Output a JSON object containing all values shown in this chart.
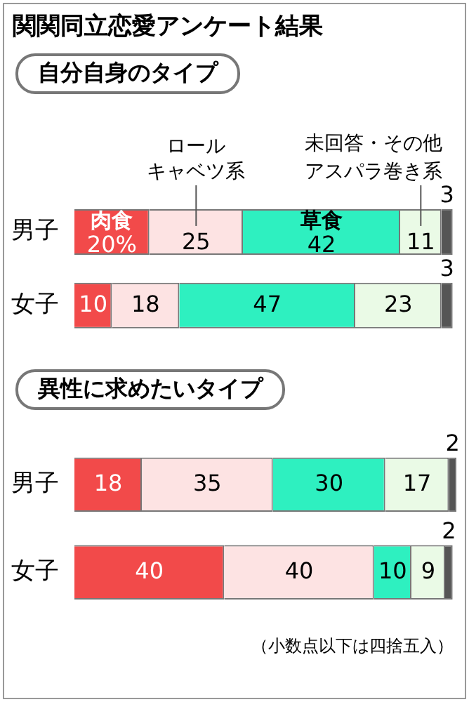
{
  "chart_data": [
    {
      "type": "bar",
      "title": "関関同立恋愛アンケート結果",
      "subtitle": "自分自身のタイプ",
      "orientation": "horizontal",
      "stacked": true,
      "categories": [
        "男子",
        "女子"
      ],
      "xlim": [
        0,
        102
      ],
      "tick_labels": "y",
      "grid": false,
      "legend": false,
      "series": [
        {
          "name": "肉食",
          "color": "#f24a4a",
          "values": [
            20,
            10
          ],
          "value_labels": [
            "20%",
            "10"
          ]
        },
        {
          "name": "ロールキャベツ系",
          "color": "#fde3e3",
          "values": [
            25,
            18
          ],
          "value_labels": [
            "25",
            "18"
          ]
        },
        {
          "name": "草食",
          "color": "#2ef0c0",
          "values": [
            42,
            47
          ],
          "value_labels": [
            "42",
            "47"
          ]
        },
        {
          "name": "アスパラ巻き系",
          "color": "#eafae6",
          "values": [
            11,
            23
          ],
          "value_labels": [
            "11",
            "23"
          ]
        },
        {
          "name": "未回答・その他",
          "color": "#555555",
          "values": [
            3,
            3
          ],
          "value_labels": [
            "3",
            "3"
          ]
        }
      ]
    },
    {
      "type": "bar",
      "subtitle": "異性に求めたいタイプ",
      "orientation": "horizontal",
      "stacked": true,
      "categories": [
        "男子",
        "女子"
      ],
      "xlim": [
        0,
        102
      ],
      "tick_labels": "y",
      "grid": false,
      "legend": false,
      "data_labels": true,
      "annotations": [
        "（小数点以下は四捨五入）"
      ],
      "series": [
        {
          "color": "#f24a4a",
          "values": [
            18,
            40
          ]
        },
        {
          "color": "#fde3e3",
          "values": [
            35,
            40
          ]
        },
        {
          "color": "#2ef0c0",
          "values": [
            30,
            10
          ]
        },
        {
          "color": "#eafae6",
          "values": [
            17,
            9
          ]
        },
        {
          "color": "#555555",
          "values": [
            2,
            2
          ]
        }
      ]
    }
  ]
}
